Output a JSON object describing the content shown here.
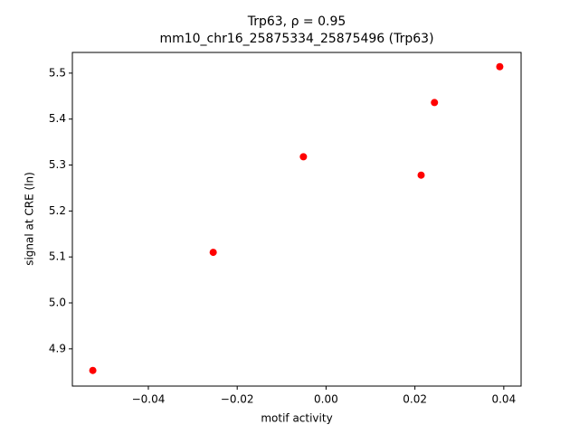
{
  "chart_data": {
    "type": "scatter",
    "title": "Trp63, ρ = 0.95",
    "subtitle": "mm10_chr16_25875334_25875496 (Trp63)",
    "xlabel": "motif activity",
    "ylabel": "signal at CRE (ln)",
    "series": [
      {
        "color": "#ff0000",
        "x": [
          -0.0525,
          -0.0254,
          -0.0051,
          0.0214,
          0.0244,
          0.0391
        ],
        "values": [
          4.853,
          5.11,
          5.318,
          5.278,
          5.436,
          5.514
        ]
      }
    ],
    "xlim": [
      -0.0571,
      0.0439
    ],
    "xticks": [
      {
        "value": -0.04,
        "label": "−0.04"
      },
      {
        "value": -0.02,
        "label": "−0.02"
      },
      {
        "value": 0,
        "label": "0.00"
      },
      0.02,
      0.04
    ],
    "ylim": [
      4.819,
      5.545
    ],
    "yticks": [
      4.9,
      {
        "value": 5,
        "label": "5.0"
      },
      5.1,
      5.2,
      5.3,
      5.4,
      5.5
    ],
    "grid": false
  }
}
